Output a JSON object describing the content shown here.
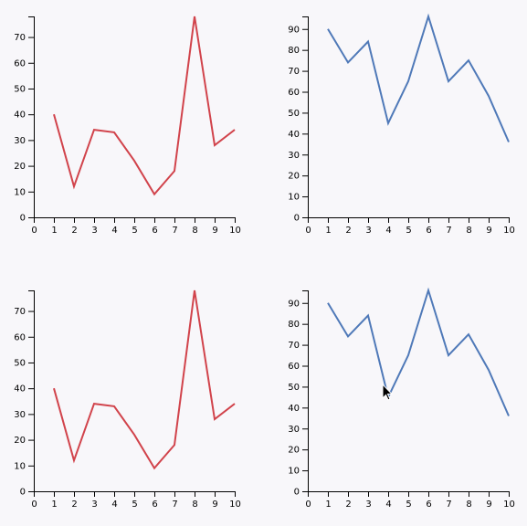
{
  "chart_data": [
    {
      "type": "line",
      "x": [
        1,
        2,
        3,
        4,
        5,
        6,
        7,
        8,
        9,
        10
      ],
      "values": [
        40,
        12,
        34,
        33,
        22,
        9,
        18,
        78,
        28,
        34
      ],
      "color": "#d1434b",
      "xlim": [
        0,
        10
      ],
      "xticks": [
        0,
        1,
        2,
        3,
        4,
        5,
        6,
        7,
        8,
        9,
        10
      ],
      "ylim": [
        0,
        78
      ],
      "yticks": [
        0,
        10,
        20,
        30,
        40,
        50,
        60,
        70
      ]
    },
    {
      "type": "line",
      "x": [
        1,
        2,
        3,
        4,
        5,
        6,
        7,
        8,
        9,
        10
      ],
      "values": [
        90,
        74,
        84,
        45,
        65,
        96,
        65,
        75,
        58,
        36
      ],
      "color": "#4f79b8",
      "xlim": [
        0,
        10
      ],
      "xticks": [
        0,
        1,
        2,
        3,
        4,
        5,
        6,
        7,
        8,
        9,
        10
      ],
      "ylim": [
        0,
        96
      ],
      "yticks": [
        0,
        10,
        20,
        30,
        40,
        50,
        60,
        70,
        80,
        90
      ]
    },
    {
      "type": "line",
      "x": [
        1,
        2,
        3,
        4,
        5,
        6,
        7,
        8,
        9,
        10
      ],
      "values": [
        40,
        12,
        34,
        33,
        22,
        9,
        18,
        78,
        28,
        34
      ],
      "color": "#d1434b",
      "xlim": [
        0,
        10
      ],
      "xticks": [
        0,
        1,
        2,
        3,
        4,
        5,
        6,
        7,
        8,
        9,
        10
      ],
      "ylim": [
        0,
        78
      ],
      "yticks": [
        0,
        10,
        20,
        30,
        40,
        50,
        60,
        70
      ]
    },
    {
      "type": "line",
      "x": [
        1,
        2,
        3,
        4,
        5,
        6,
        7,
        8,
        9,
        10
      ],
      "values": [
        90,
        74,
        84,
        45,
        65,
        96,
        65,
        75,
        58,
        36
      ],
      "color": "#4f79b8",
      "xlim": [
        0,
        10
      ],
      "xticks": [
        0,
        1,
        2,
        3,
        4,
        5,
        6,
        7,
        8,
        9,
        10
      ],
      "ylim": [
        0,
        96
      ],
      "yticks": [
        0,
        10,
        20,
        30,
        40,
        50,
        60,
        70,
        80,
        90
      ]
    }
  ]
}
